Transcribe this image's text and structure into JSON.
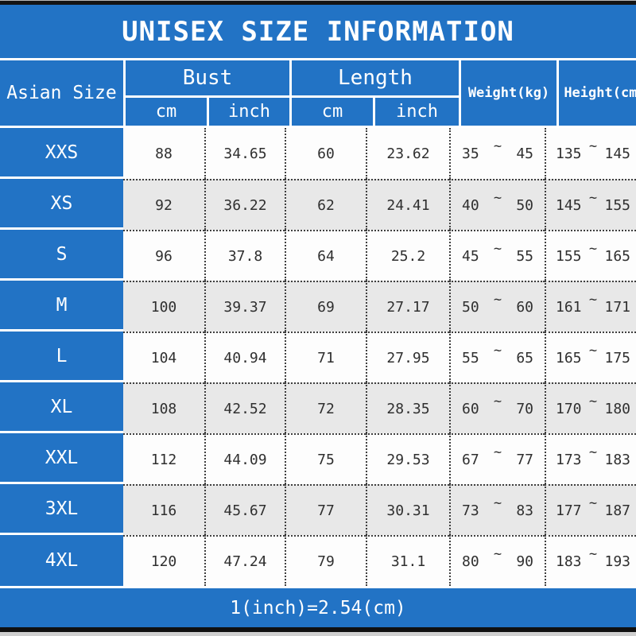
{
  "title": "UNISEX SIZE INFORMATION",
  "colors": {
    "blue": "#2273c5",
    "row_white": "#fdfdfd",
    "row_alt": "#e8e8e8",
    "text": "#2f2f2f",
    "border_dot": "#3f3f3f",
    "strip": "#cfcfcf"
  },
  "table": {
    "header": {
      "asian_size": "Asian Size",
      "bust": "Bust",
      "length": "Length",
      "cm": "cm",
      "inch": "inch",
      "weight": "Weight(kg)",
      "height": "Height(cm)"
    },
    "tilde": "~",
    "rows": [
      {
        "size": "XXS",
        "bust_cm": "88",
        "bust_inch": "34.65",
        "length_cm": "60",
        "length_inch": "23.62",
        "weight_min": "35",
        "weight_max": "45",
        "height_min": "135",
        "height_max": "145"
      },
      {
        "size": "XS",
        "bust_cm": "92",
        "bust_inch": "36.22",
        "length_cm": "62",
        "length_inch": "24.41",
        "weight_min": "40",
        "weight_max": "50",
        "height_min": "145",
        "height_max": "155"
      },
      {
        "size": "S",
        "bust_cm": "96",
        "bust_inch": "37.8",
        "length_cm": "64",
        "length_inch": "25.2",
        "weight_min": "45",
        "weight_max": "55",
        "height_min": "155",
        "height_max": "165"
      },
      {
        "size": "M",
        "bust_cm": "100",
        "bust_inch": "39.37",
        "length_cm": "69",
        "length_inch": "27.17",
        "weight_min": "50",
        "weight_max": "60",
        "height_min": "161",
        "height_max": "171"
      },
      {
        "size": "L",
        "bust_cm": "104",
        "bust_inch": "40.94",
        "length_cm": "71",
        "length_inch": "27.95",
        "weight_min": "55",
        "weight_max": "65",
        "height_min": "165",
        "height_max": "175"
      },
      {
        "size": "XL",
        "bust_cm": "108",
        "bust_inch": "42.52",
        "length_cm": "72",
        "length_inch": "28.35",
        "weight_min": "60",
        "weight_max": "70",
        "height_min": "170",
        "height_max": "180"
      },
      {
        "size": "XXL",
        "bust_cm": "112",
        "bust_inch": "44.09",
        "length_cm": "75",
        "length_inch": "29.53",
        "weight_min": "67",
        "weight_max": "77",
        "height_min": "173",
        "height_max": "183"
      },
      {
        "size": "3XL",
        "bust_cm": "116",
        "bust_inch": "45.67",
        "length_cm": "77",
        "length_inch": "30.31",
        "weight_min": "73",
        "weight_max": "83",
        "height_min": "177",
        "height_max": "187"
      },
      {
        "size": "4XL",
        "bust_cm": "120",
        "bust_inch": "47.24",
        "length_cm": "79",
        "length_inch": "31.1",
        "weight_min": "80",
        "weight_max": "90",
        "height_min": "183",
        "height_max": "193"
      }
    ]
  },
  "footer": {
    "note": "1(inch)=2.54(cm)"
  },
  "chart_data": {
    "type": "table",
    "title": "UNISEX SIZE INFORMATION",
    "columns": [
      "Asian Size",
      "Bust cm",
      "Bust inch",
      "Length cm",
      "Length inch",
      "Weight(kg)",
      "Height(cm)"
    ],
    "rows": [
      [
        "XXS",
        88,
        34.65,
        60,
        23.62,
        "35~45",
        "135~145"
      ],
      [
        "XS",
        92,
        36.22,
        62,
        24.41,
        "40~50",
        "145~155"
      ],
      [
        "S",
        96,
        37.8,
        64,
        25.2,
        "45~55",
        "155~165"
      ],
      [
        "M",
        100,
        39.37,
        69,
        27.17,
        "50~60",
        "161~171"
      ],
      [
        "L",
        104,
        40.94,
        71,
        27.95,
        "55~65",
        "165~175"
      ],
      [
        "XL",
        108,
        42.52,
        72,
        28.35,
        "60~70",
        "170~180"
      ],
      [
        "XXL",
        112,
        44.09,
        75,
        29.53,
        "67~77",
        "173~183"
      ],
      [
        "3XL",
        116,
        45.67,
        77,
        30.31,
        "73~83",
        "177~187"
      ],
      [
        "4XL",
        120,
        47.24,
        79,
        31.1,
        "80~90",
        "183~193"
      ]
    ],
    "footnote": "1(inch)=2.54(cm)"
  }
}
